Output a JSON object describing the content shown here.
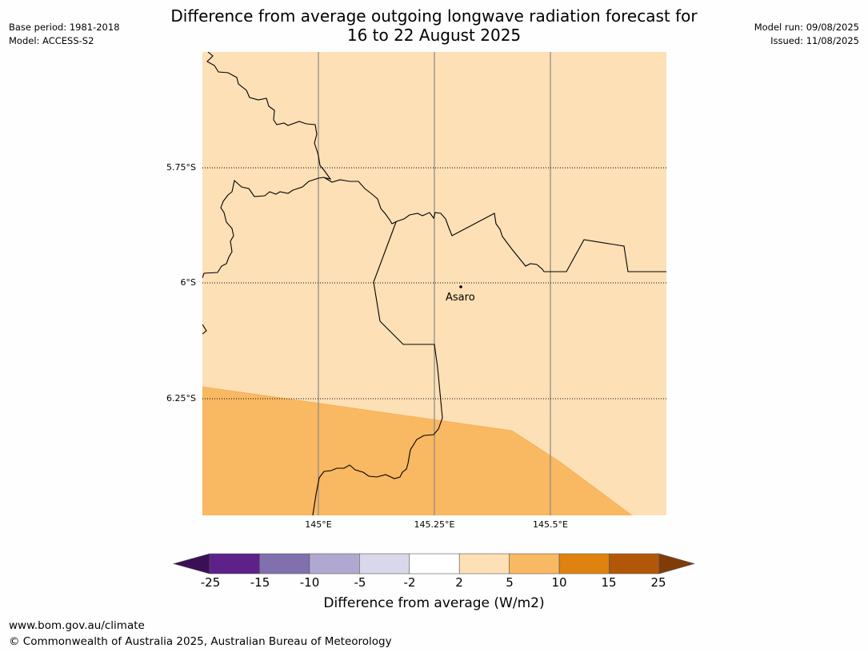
{
  "title": {
    "line1": "Difference from average outgoing longwave radiation forecast for",
    "line2": "16 to 22 August 2025"
  },
  "meta": {
    "base_period": "Base period: 1981-2018",
    "model": "Model: ACCESS-S2",
    "model_run": "Model run: 09/08/2025",
    "issued": "Issued: 11/08/2025"
  },
  "map": {
    "lat_labels": [
      "5.75°S",
      "6°S",
      "6.25°S"
    ],
    "lon_labels": [
      "145°E",
      "145.25°E",
      "145.5°E"
    ],
    "places": [
      {
        "name": "Asaro"
      }
    ],
    "fill_colors": {
      "band_2_5": "#fde0b6",
      "band_5_10": "#f9b862"
    },
    "border_color": "#000000"
  },
  "colorbar": {
    "ticks": [
      "-25",
      "-15",
      "-10",
      "-5",
      "-2",
      "2",
      "5",
      "10",
      "15",
      "25"
    ],
    "colors": [
      "#3b0f55",
      "#5c2289",
      "#8170ae",
      "#b1a8d2",
      "#d9d8ea",
      "#ffffff",
      "#fde0b6",
      "#f9b862",
      "#e0820f",
      "#b25708",
      "#7f3b08"
    ],
    "label": "Difference from average (W/m2)"
  },
  "footer": {
    "url": "www.bom.gov.au/climate",
    "copyright": "© Commonwealth of Australia 2025, Australian Bureau of Meteorology"
  }
}
